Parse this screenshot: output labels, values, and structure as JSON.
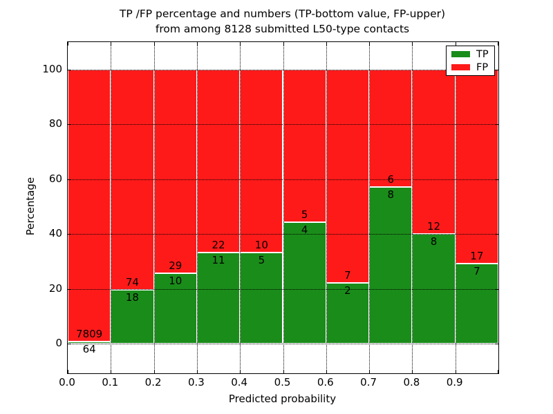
{
  "title": {
    "line1": "TP /FP percentage and numbers (TP-bottom value, FP-upper)",
    "line2": "from among 8128 submitted L50-type contacts"
  },
  "chart_data": {
    "type": "bar",
    "stacked": true,
    "normalized": "each bin stacked to 100%; TP% = TP/(TP+FP)*100",
    "title": "TP /FP percentage and numbers (TP-bottom value, FP-upper)\nfrom among 8128 submitted L50-type contacts",
    "xlabel": "Predicted probability",
    "ylabel": "Percentage",
    "categories": [
      "0.0-0.1",
      "0.1-0.2",
      "0.2-0.3",
      "0.3-0.4",
      "0.4-0.5",
      "0.5-0.6",
      "0.6-0.7",
      "0.7-0.8",
      "0.8-0.9",
      "0.9-1.0"
    ],
    "series": [
      {
        "name": "TP",
        "color": "#1a8c1a",
        "counts": [
          64,
          18,
          10,
          11,
          5,
          4,
          2,
          8,
          8,
          7
        ]
      },
      {
        "name": "FP",
        "color": "#ff1a1a",
        "counts": [
          7809,
          74,
          29,
          22,
          10,
          5,
          7,
          6,
          12,
          17
        ]
      }
    ],
    "tp_percent": [
      0.81,
      19.57,
      25.64,
      33.33,
      33.33,
      44.44,
      22.22,
      57.14,
      40.0,
      29.17
    ],
    "total_contacts": 8128,
    "xticks": [
      "0.0",
      "0.1",
      "0.2",
      "0.3",
      "0.4",
      "0.5",
      "0.6",
      "0.7",
      "0.8",
      "0.9"
    ],
    "yticks": [
      0,
      20,
      40,
      60,
      80,
      100
    ],
    "xlim": [
      0.0,
      1.0
    ],
    "ylim": [
      -10.8,
      110.1
    ],
    "grid": "dotted black, horizontal at yticks and vertical at xticks, drawn over bars",
    "bar_edge_color": "#ffffff",
    "legend": {
      "position": "upper right",
      "entries": [
        {
          "label": "TP",
          "color": "#1a8c1a"
        },
        {
          "label": "FP",
          "color": "#ff1a1a"
        }
      ]
    }
  },
  "colors": {
    "tp": "#1a8c1a",
    "fp": "#ff1a1a",
    "background": "#ffffff",
    "text": "#000000",
    "grid": "#000000"
  }
}
